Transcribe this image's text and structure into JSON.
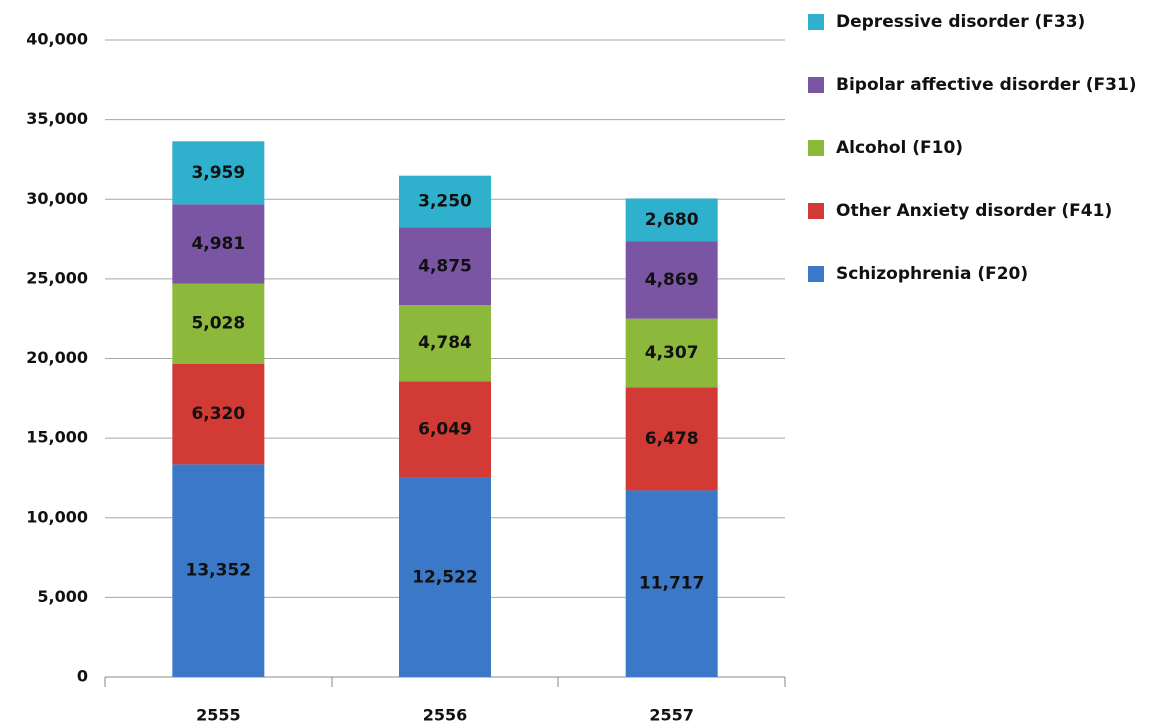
{
  "chart_data": {
    "type": "stacked_bar",
    "categories": [
      "2555",
      "2556",
      "2557"
    ],
    "series": [
      {
        "name": "Schizophrenia (F20)",
        "color": "#3b78c8",
        "values": [
          13352,
          12522,
          11717
        ],
        "value_labels": [
          "13,352",
          "12,522",
          "11,717"
        ]
      },
      {
        "name": "Other Anxiety disorder (F41)",
        "color": "#d13a35",
        "values": [
          6320,
          6049,
          6478
        ],
        "value_labels": [
          "6,320",
          "6,049",
          "6,478"
        ]
      },
      {
        "name": "Alcohol (F10)",
        "color": "#8cb83c",
        "values": [
          5028,
          4784,
          4307
        ],
        "value_labels": [
          "5,028",
          "4,784",
          "4,307"
        ]
      },
      {
        "name": "Bipolar affective disorder (F31)",
        "color": "#7a55a3",
        "values": [
          4981,
          4875,
          4869
        ],
        "value_labels": [
          "4,981",
          "4,875",
          "4,869"
        ]
      },
      {
        "name": "Depressive disorder (F33)",
        "color": "#2fb0cc",
        "values": [
          3959,
          3250,
          2680
        ],
        "value_labels": [
          "3,959",
          "3,250",
          "2,680"
        ]
      }
    ],
    "ylim": [
      0,
      40000
    ],
    "yticks": [
      0,
      {
        "value": 5000,
        "label": "5,000"
      },
      {
        "value": 10000,
        "label": "10,000"
      },
      {
        "value": 15000,
        "label": "15,000"
      },
      {
        "value": 20000,
        "label": "20,000"
      },
      {
        "value": 25000,
        "label": "25,000"
      },
      {
        "value": 30000,
        "label": "30,000"
      },
      {
        "value": 35000,
        "label": "35,000"
      },
      {
        "value": 40000,
        "label": "40,000"
      }
    ],
    "grid": true,
    "legend": "right"
  }
}
